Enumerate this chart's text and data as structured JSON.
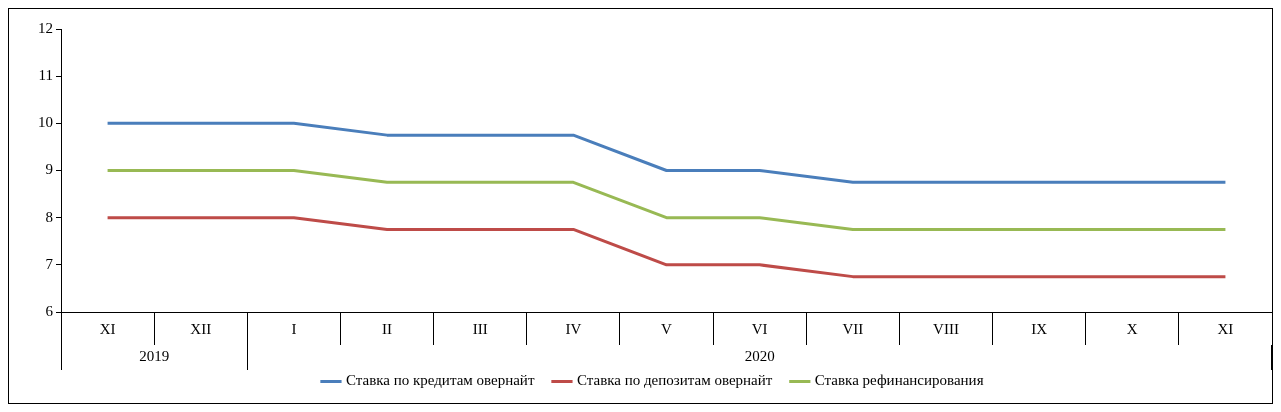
{
  "chart_data": {
    "type": "line",
    "categories": [
      "XI",
      "XII",
      "I",
      "II",
      "III",
      "IV",
      "V",
      "VI",
      "VII",
      "VIII",
      "IX",
      "X",
      "XI"
    ],
    "series": [
      {
        "name": "Ставка по кредитам овернайт",
        "color": "#4a7ebb",
        "values": [
          10,
          10,
          10,
          9.75,
          9.75,
          9.75,
          9,
          9,
          8.75,
          8.75,
          8.75,
          8.75,
          8.75
        ]
      },
      {
        "name": "Ставка по депозитам овернайт",
        "color": "#be4b48",
        "values": [
          8,
          8,
          8,
          7.75,
          7.75,
          7.75,
          7,
          7,
          6.75,
          6.75,
          6.75,
          6.75,
          6.75
        ]
      },
      {
        "name": "Ставка рефинансирования",
        "color": "#98b954",
        "values": [
          9,
          9,
          9,
          8.75,
          8.75,
          8.75,
          8,
          8,
          7.75,
          7.75,
          7.75,
          7.75,
          7.75
        ]
      }
    ],
    "annotations": [
      "2019",
      "2020"
    ],
    "ylim": [
      6,
      12
    ],
    "yticks": [
      6,
      7,
      8,
      9,
      10,
      11,
      12
    ],
    "grid": false,
    "legend": "bottom",
    "marker": "none",
    "line_style": "solid"
  }
}
